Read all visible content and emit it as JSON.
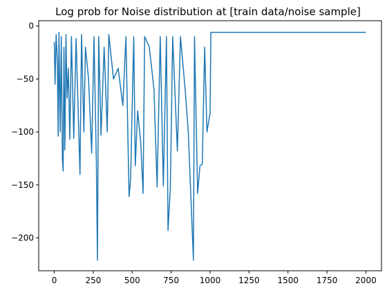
{
  "chart_data": {
    "type": "line",
    "title": "Log prob for Noise distribution at [train data/noise sample]",
    "xlabel": "",
    "ylabel": "",
    "xlim": [
      -100,
      2100
    ],
    "ylim": [
      -231,
      5
    ],
    "x_ticks": [
      0,
      250,
      500,
      750,
      1000,
      1250,
      1500,
      1750,
      2000
    ],
    "y_ticks": [
      0,
      -50,
      -100,
      -150,
      -200
    ],
    "x_tick_labels": [
      "0",
      "250",
      "500",
      "750",
      "1000",
      "1250",
      "1500",
      "1750",
      "2000"
    ],
    "y_tick_labels": [
      "0",
      "−50",
      "−100",
      "−150",
      "−200"
    ],
    "grid": false,
    "legend": "none",
    "line_color": "#1f77b4",
    "series": [
      {
        "description_points": [
          [
            0,
            -15
          ],
          [
            5,
            -55
          ],
          [
            12,
            -8
          ],
          [
            20,
            -35
          ],
          [
            25,
            -104
          ],
          [
            30,
            -6
          ],
          [
            38,
            -100
          ],
          [
            45,
            -10
          ],
          [
            52,
            -125
          ],
          [
            57,
            -137
          ],
          [
            62,
            -20
          ],
          [
            68,
            -117
          ],
          [
            75,
            -8
          ],
          [
            82,
            -68
          ],
          [
            90,
            -40
          ],
          [
            100,
            -107
          ],
          [
            110,
            -10
          ],
          [
            125,
            -106
          ],
          [
            140,
            -12
          ],
          [
            165,
            -140
          ],
          [
            175,
            -8
          ],
          [
            190,
            -100
          ],
          [
            200,
            -20
          ],
          [
            220,
            -50
          ],
          [
            240,
            -120
          ],
          [
            255,
            -10
          ],
          [
            270,
            -128
          ],
          [
            277,
            -221
          ],
          [
            285,
            -10
          ],
          [
            300,
            -103
          ],
          [
            320,
            -20
          ],
          [
            340,
            -100
          ],
          [
            350,
            -8
          ],
          [
            380,
            -50
          ],
          [
            410,
            -40
          ],
          [
            440,
            -75
          ],
          [
            460,
            -10
          ],
          [
            480,
            -161
          ],
          [
            490,
            -144
          ],
          [
            510,
            -10
          ],
          [
            520,
            -132
          ],
          [
            535,
            -80
          ],
          [
            555,
            -110
          ],
          [
            570,
            -158
          ],
          [
            580,
            -10
          ],
          [
            610,
            -20
          ],
          [
            640,
            -60
          ],
          [
            660,
            -152
          ],
          [
            680,
            -10
          ],
          [
            700,
            -151
          ],
          [
            720,
            -10
          ],
          [
            730,
            -193
          ],
          [
            745,
            -152
          ],
          [
            760,
            -10
          ],
          [
            790,
            -118
          ],
          [
            810,
            -10
          ],
          [
            840,
            -60
          ],
          [
            860,
            -100
          ],
          [
            893,
            -221
          ],
          [
            900,
            -10
          ],
          [
            920,
            -158
          ],
          [
            935,
            -132
          ],
          [
            950,
            -130
          ],
          [
            965,
            -20
          ],
          [
            980,
            -100
          ],
          [
            1000,
            -82
          ],
          [
            1005,
            -6
          ],
          [
            1200,
            -6
          ],
          [
            1400,
            -6
          ],
          [
            1600,
            -6
          ],
          [
            1800,
            -6
          ],
          [
            2000,
            -6
          ]
        ]
      }
    ]
  }
}
